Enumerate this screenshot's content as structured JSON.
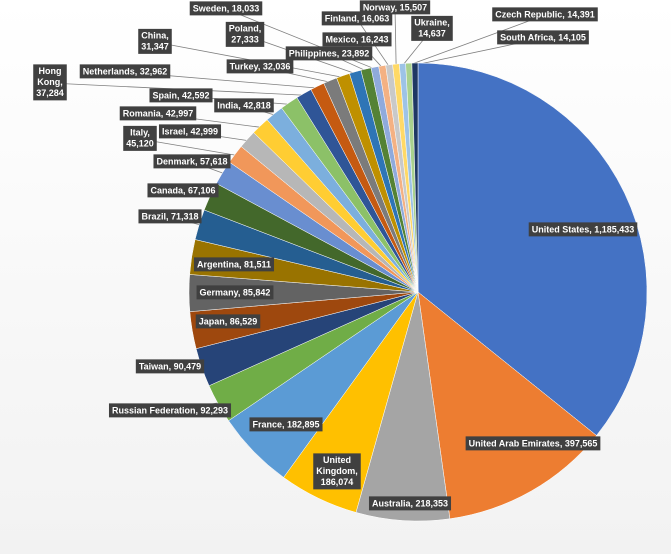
{
  "chart_data": {
    "type": "pie",
    "labels": [
      "United States, 1,185,433",
      "United Arab Emirates, 397,565",
      "Australia, 218,353",
      "United Kingdom, 186,074",
      "France, 182,895",
      "Russian Federation, 92,293",
      "Taiwan, 90,479",
      "Japan, 86,529",
      "Germany, 85,842",
      "Argentina, 81,511",
      "Brazil, 71,318",
      "Canada, 67,106",
      "Denmark, 57,618",
      "Italy, 45,120",
      "Israel, 42,999",
      "Romania, 42,997",
      "India, 42,818",
      "Spain, 42,592",
      "Hong Kong, 37,284",
      "Netherlands, 32,962",
      "Turkey, 32,036",
      "China, 31,347",
      "Poland, 27,333",
      "Philippines, 23,892",
      "Sweden, 18,033",
      "Mexico, 16,243",
      "Finland, 16,063",
      "Norway, 15,507",
      "Ukraine, 14,637",
      "Czech Republic, 14,391",
      "South Africa, 14,105"
    ],
    "values": [
      1185433,
      397565,
      218353,
      186074,
      182895,
      92293,
      90479,
      86529,
      85842,
      81511,
      71318,
      67106,
      57618,
      45120,
      42999,
      42997,
      42818,
      42592,
      37284,
      32962,
      32036,
      31347,
      27333,
      23892,
      18033,
      16243,
      16063,
      15507,
      14637,
      14391,
      14105
    ],
    "colors": [
      "#4472c4",
      "#ed7d31",
      "#a5a5a5",
      "#ffc000",
      "#5b9bd5",
      "#70ad47",
      "#264478",
      "#9e480e",
      "#636363",
      "#997300",
      "#255e91",
      "#43682b",
      "#698ed0",
      "#f1975a",
      "#b7b7b7",
      "#ffcd33",
      "#7cafdd",
      "#8cc168",
      "#2f5597",
      "#c55a11",
      "#7b7b7b",
      "#bf9000",
      "#2e75b6",
      "#548235",
      "#8faadc",
      "#f4b183",
      "#c9c9c9",
      "#ffd966",
      "#9dc3e6",
      "#a9d18e",
      "#1f3864"
    ]
  }
}
